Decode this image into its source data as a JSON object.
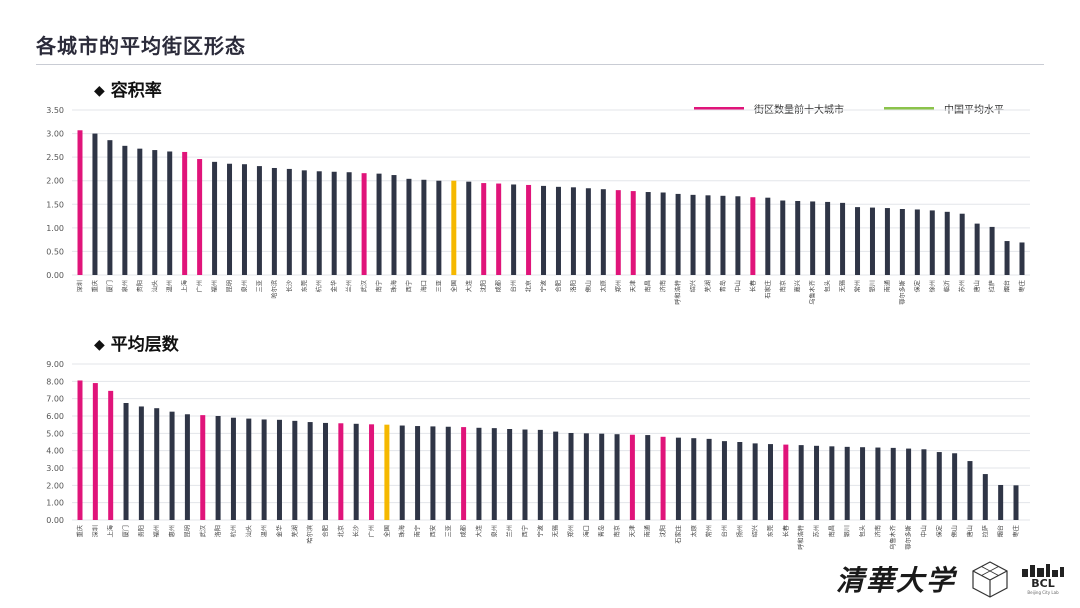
{
  "page": {
    "title": "各城市的平均街区形态"
  },
  "legend": {
    "top10_label": "街区数量前十大城市",
    "national_label": "中国平均水平",
    "top10_color": "#e0147a",
    "national_color": "#8bc34a"
  },
  "colors": {
    "default": "#2f3546",
    "top10": "#e0147a",
    "national": "#f5b800"
  },
  "logo": {
    "calligraphy": "清華大学",
    "brand": "BCL",
    "brand_sub": "Beijing City Lab"
  },
  "chart_data": [
    {
      "type": "bar",
      "title": "容积率",
      "ylim": [
        0,
        3.5
      ],
      "yticks": [
        "0.00",
        "0.50",
        "1.00",
        "1.50",
        "2.00",
        "2.50",
        "3.00",
        "3.50"
      ],
      "categories": [
        "深圳",
        "重庆",
        "厦门",
        "泉州",
        "贵阳",
        "汕头",
        "温州",
        "上海",
        "广州",
        "福州",
        "昆明",
        "泉州",
        "三亚",
        "哈尔滨",
        "长沙",
        "东莞",
        "杭州",
        "金华",
        "兰州",
        "武汉",
        "南宁",
        "珠海",
        "西宁",
        "海口",
        "三亚",
        "全国",
        "大连",
        "沈阳",
        "成都",
        "台州",
        "北京",
        "宁波",
        "合肥",
        "洛阳",
        "佛山",
        "太原",
        "郑州",
        "天津",
        "南昌",
        "济南",
        "呼和浩特",
        "绍兴",
        "芜湖",
        "青岛",
        "中山",
        "长春",
        "石家庄",
        "南京",
        "嘉兴",
        "乌鲁木齐",
        "包头",
        "无锡",
        "常州",
        "银川",
        "南通",
        "鄂尔多斯",
        "保定",
        "徐州",
        "临沂",
        "苏州",
        "唐山",
        "拉萨",
        "烟台",
        "枣庄"
      ],
      "values": [
        3.07,
        3.0,
        2.86,
        2.74,
        2.68,
        2.65,
        2.62,
        2.61,
        2.46,
        2.4,
        2.36,
        2.35,
        2.31,
        2.27,
        2.25,
        2.22,
        2.2,
        2.19,
        2.18,
        2.16,
        2.15,
        2.12,
        2.04,
        2.02,
        2.0,
        2.0,
        1.98,
        1.95,
        1.94,
        1.92,
        1.91,
        1.89,
        1.87,
        1.86,
        1.84,
        1.82,
        1.8,
        1.78,
        1.76,
        1.75,
        1.72,
        1.7,
        1.69,
        1.68,
        1.67,
        1.65,
        1.64,
        1.58,
        1.57,
        1.56,
        1.55,
        1.53,
        1.44,
        1.43,
        1.42,
        1.4,
        1.39,
        1.37,
        1.34,
        1.3,
        1.09,
        1.02,
        0.72,
        0.69
      ],
      "highlight": [
        "top10",
        "default",
        "default",
        "default",
        "default",
        "default",
        "default",
        "top10",
        "top10",
        "default",
        "default",
        "default",
        "default",
        "default",
        "default",
        "default",
        "default",
        "default",
        "default",
        "top10",
        "default",
        "default",
        "default",
        "default",
        "default",
        "national",
        "default",
        "top10",
        "top10",
        "default",
        "top10",
        "default",
        "default",
        "default",
        "default",
        "default",
        "top10",
        "top10",
        "default",
        "default",
        "default",
        "default",
        "default",
        "default",
        "default",
        "top10",
        "default",
        "default",
        "default",
        "default",
        "default",
        "default",
        "default",
        "default",
        "default",
        "default",
        "default",
        "default",
        "default",
        "default",
        "default",
        "default",
        "default",
        "default"
      ]
    },
    {
      "type": "bar",
      "title": "平均层数",
      "ylim": [
        0,
        9
      ],
      "yticks": [
        "0.00",
        "1.00",
        "2.00",
        "3.00",
        "4.00",
        "5.00",
        "6.00",
        "7.00",
        "8.00",
        "9.00"
      ],
      "categories": [
        "重庆",
        "深圳",
        "上海",
        "厦门",
        "贵阳",
        "福州",
        "惠州",
        "昆明",
        "武汉",
        "洛阳",
        "杭州",
        "汕头",
        "温州",
        "金华",
        "芜湖",
        "哈尔滨",
        "合肥",
        "北京",
        "长沙",
        "广州",
        "全国",
        "珠海",
        "南宁",
        "西安",
        "三亚",
        "成都",
        "大连",
        "泉州",
        "兰州",
        "西宁",
        "宁波",
        "无锡",
        "郑州",
        "海口",
        "青岛",
        "南京",
        "天津",
        "南通",
        "沈阳",
        "石家庄",
        "太原",
        "常州",
        "台州",
        "扬州",
        "绍兴",
        "东莞",
        "长春",
        "呼和浩特",
        "苏州",
        "南昌",
        "银川",
        "包头",
        "济南",
        "乌鲁木齐",
        "鄂尔多斯",
        "中山",
        "保定",
        "佛山",
        "唐山",
        "拉萨",
        "烟台",
        "枣庄"
      ],
      "values": [
        8.05,
        7.9,
        7.45,
        6.75,
        6.55,
        6.45,
        6.25,
        6.1,
        6.05,
        6.0,
        5.9,
        5.85,
        5.8,
        5.78,
        5.72,
        5.65,
        5.6,
        5.58,
        5.55,
        5.52,
        5.5,
        5.45,
        5.42,
        5.4,
        5.38,
        5.36,
        5.32,
        5.3,
        5.25,
        5.22,
        5.2,
        5.1,
        5.02,
        5.0,
        4.98,
        4.95,
        4.92,
        4.9,
        4.8,
        4.75,
        4.72,
        4.68,
        4.55,
        4.5,
        4.42,
        4.38,
        4.35,
        4.32,
        4.28,
        4.25,
        4.22,
        4.2,
        4.18,
        4.16,
        4.12,
        4.08,
        3.92,
        3.85,
        3.4,
        2.65,
        2.02,
        2.0
      ],
      "highlight": [
        "top10",
        "top10",
        "top10",
        "default",
        "default",
        "default",
        "default",
        "default",
        "top10",
        "default",
        "default",
        "default",
        "default",
        "default",
        "default",
        "default",
        "default",
        "top10",
        "default",
        "top10",
        "national",
        "default",
        "default",
        "default",
        "default",
        "top10",
        "default",
        "default",
        "default",
        "default",
        "default",
        "default",
        "default",
        "default",
        "default",
        "default",
        "top10",
        "default",
        "top10",
        "default",
        "default",
        "default",
        "default",
        "default",
        "default",
        "default",
        "top10",
        "default",
        "default",
        "default",
        "default",
        "default",
        "default",
        "default",
        "default",
        "default",
        "default",
        "default",
        "default",
        "default",
        "default",
        "default"
      ]
    }
  ]
}
